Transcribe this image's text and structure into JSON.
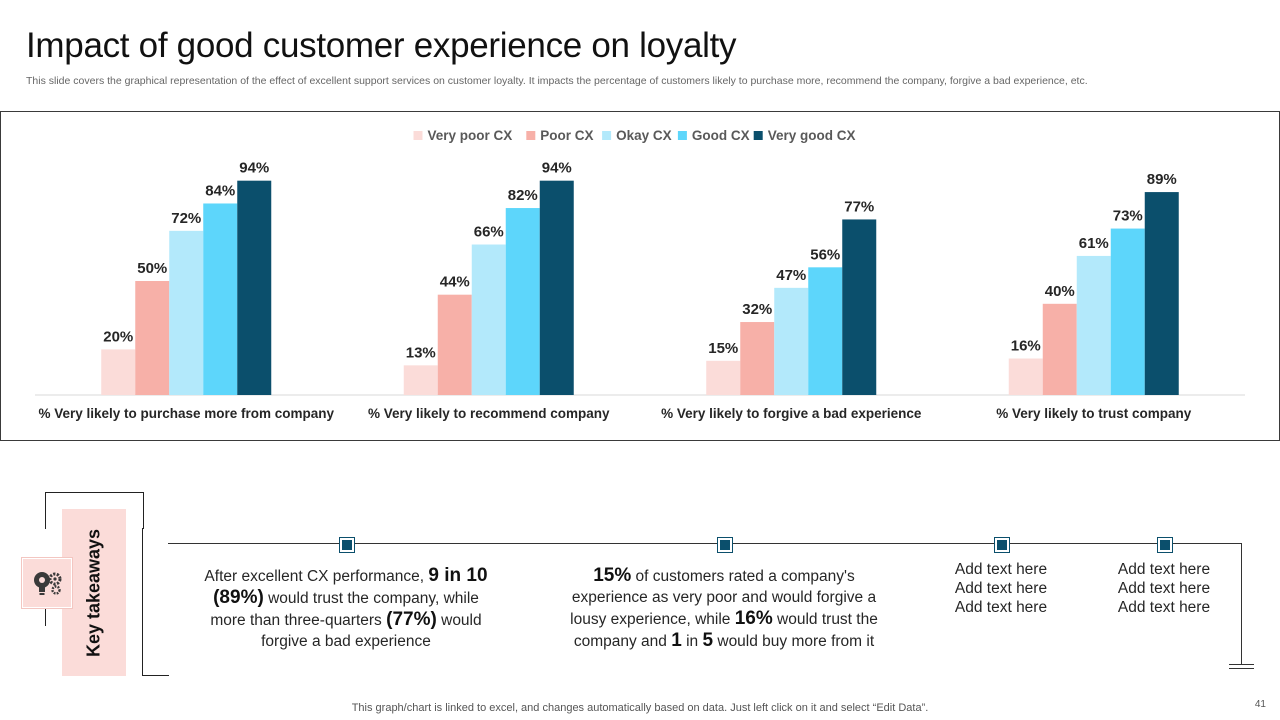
{
  "slide": {
    "title": "Impact of good customer experience on loyalty",
    "subtitle": "This slide covers the graphical representation of the effect of excellent support services on customer loyalty. It impacts the percentage of customers likely to purchase more, recommend the company, forgive a bad experience, etc.",
    "footer": "This graph/chart is linked to excel,  and changes automatically based on data. Just left click on it and select “Edit Data”.",
    "page_number": "41"
  },
  "chart_data": {
    "type": "bar",
    "title": "",
    "xlabel": "",
    "ylabel": "",
    "ylim": [
      0,
      100
    ],
    "legend_position": "top",
    "value_suffix": "%",
    "categories": [
      "% Very likely to purchase more from company",
      "% Very likely to recommend company",
      "% Very likely to forgive a bad experience",
      "% Very likely to trust company"
    ],
    "series": [
      {
        "name": "Very poor CX",
        "color": "#fbdcd9",
        "values": [
          20,
          13,
          15,
          16
        ]
      },
      {
        "name": "Poor CX",
        "color": "#f7b0a8",
        "values": [
          50,
          44,
          32,
          40
        ]
      },
      {
        "name": "Okay CX",
        "color": "#b3e9fb",
        "values": [
          72,
          66,
          47,
          61
        ]
      },
      {
        "name": "Good CX",
        "color": "#5dd6fb",
        "values": [
          84,
          82,
          56,
          73
        ]
      },
      {
        "name": "Very good CX",
        "color": "#0b4f6c",
        "values": [
          94,
          94,
          77,
          89
        ]
      }
    ]
  },
  "takeaways": {
    "heading": "Key takeaways",
    "icon": "lightbulb-gears-icon",
    "item1": {
      "t1": "After excellent  CX performance, ",
      "b1": "9 in 10",
      "b2": "(89%)",
      "t2": " would trust the company, while more than three-quarters ",
      "b3": "(77%)",
      "t3": " would forgive a bad experience"
    },
    "item2": {
      "b1": "15%",
      "t1": " of customers rated a company's experience as very poor and would forgive a lousy experience, while ",
      "b2": "16%",
      "t2": " would trust the company and ",
      "b3": "1",
      "t3": " in ",
      "b4": "5",
      "t4": " would buy more from it"
    },
    "item3": [
      "Add text here",
      "Add text here",
      "Add text here"
    ],
    "item4": [
      "Add text here",
      "Add text here",
      "Add text here"
    ]
  }
}
